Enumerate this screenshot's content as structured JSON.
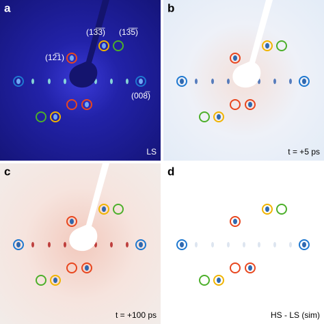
{
  "panels": [
    {
      "letter": "a",
      "caption": "LS",
      "labels": [
        "(13̅3̅)",
        "(13̅5̅)",
        "(12̅1)",
        "(008̅)"
      ]
    },
    {
      "letter": "b",
      "caption": "t = +5 ps"
    },
    {
      "letter": "c",
      "caption": "t = +100 ps"
    },
    {
      "letter": "d",
      "caption": "HS - LS (sim)"
    }
  ]
}
